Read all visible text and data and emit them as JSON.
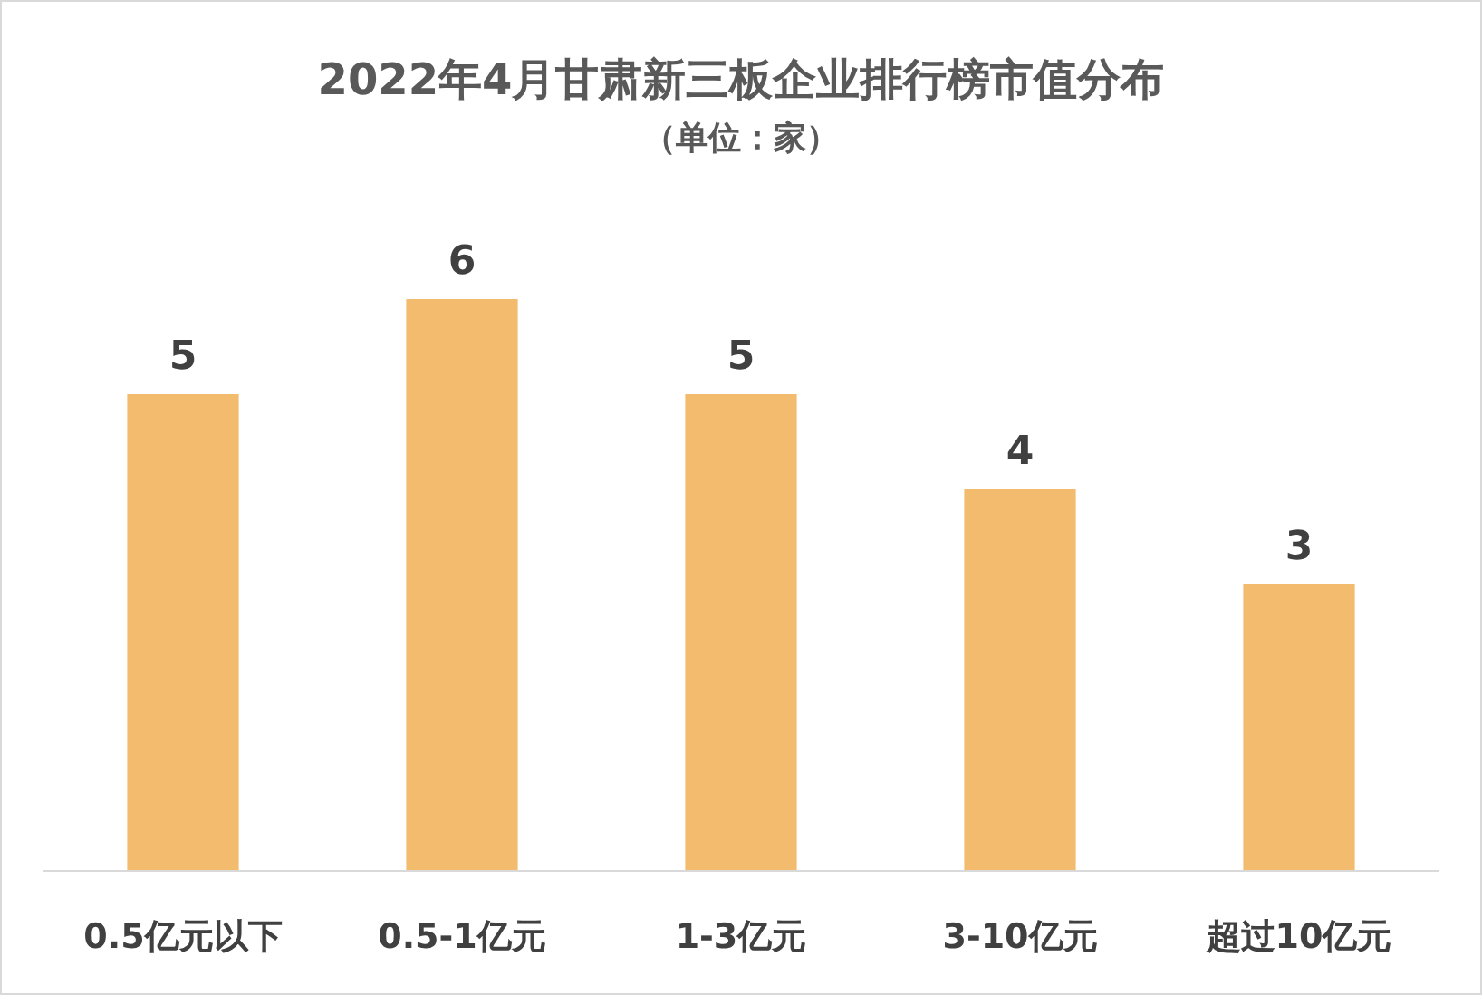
{
  "chart_data": {
    "type": "bar",
    "title": "2022年4月甘肃新三板企业排行榜市值分布",
    "subtitle": "（单位：家）",
    "categories": [
      "0.5亿元以下",
      "0.5-1亿元",
      "1-3亿元",
      "3-10亿元",
      "超过10亿元"
    ],
    "values": [
      5,
      6,
      5,
      4,
      3
    ],
    "color": "#f2bb6e",
    "data_labels": true
  }
}
